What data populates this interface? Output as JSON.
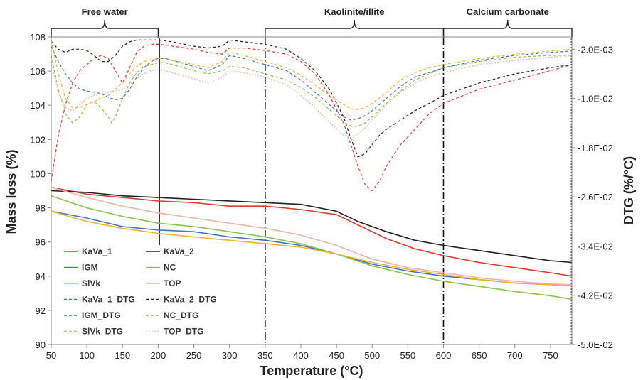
{
  "chart_data": {
    "type": "line",
    "title": "",
    "xlabel": "Temperature (°C)",
    "ylabel": "Mass loss (%)",
    "y2label": "DTG (%/°C)",
    "xlim": [
      50,
      780
    ],
    "ylim": [
      90,
      108
    ],
    "y2lim": [
      -0.05,
      0.0
    ],
    "xticks": [
      "50",
      "100",
      "150",
      "200",
      "250",
      "300",
      "350",
      "400",
      "450",
      "500",
      "550",
      "600",
      "650",
      "700",
      "750"
    ],
    "yticks": [
      "90",
      "92",
      "94",
      "96",
      "98",
      "100",
      "102",
      "104",
      "106",
      "108"
    ],
    "y2ticks": [
      "-2.0E-03",
      "-1.0E-02",
      "-1.8E-02",
      "-2.6E-02",
      "-3.4E-02",
      "-4.2E-02",
      "-5.0E-02"
    ],
    "grid": false,
    "regions": [
      {
        "label": "Free water",
        "start": 50,
        "end": 200
      },
      {
        "label": "Kaolinite/illite",
        "start": 350,
        "end": 600
      },
      {
        "label": "Calcium carbonate",
        "start": 600,
        "end": 780
      }
    ],
    "legend": [
      "KaVa_1",
      "KaVa_2",
      "IGM",
      "NC",
      "SlVk",
      "TOP",
      "KaVa_1_DTG",
      "KaVa_2_DTG",
      "IGM_DTG",
      "NC_DTG",
      "SlVk_DTG",
      "TOP_DTG"
    ],
    "legend_position": "bottom-left",
    "series": [
      {
        "name": "KaVa_1",
        "axis": "left",
        "color": "#e03a2e",
        "dash": "solid",
        "x": [
          50,
          100,
          150,
          200,
          250,
          300,
          350,
          400,
          450,
          480,
          520,
          560,
          600,
          650,
          700,
          750,
          780
        ],
        "y": [
          99.2,
          98.8,
          98.6,
          98.4,
          98.3,
          98.1,
          98.1,
          97.9,
          97.6,
          97.0,
          96.2,
          95.6,
          95.2,
          94.8,
          94.5,
          94.2,
          94.0
        ]
      },
      {
        "name": "KaVa_2",
        "axis": "left",
        "color": "#222222",
        "dash": "solid",
        "x": [
          50,
          100,
          150,
          200,
          250,
          300,
          350,
          400,
          450,
          480,
          520,
          560,
          600,
          650,
          700,
          750,
          780
        ],
        "y": [
          99.0,
          98.9,
          98.7,
          98.6,
          98.5,
          98.4,
          98.3,
          98.2,
          97.8,
          97.2,
          96.6,
          96.1,
          95.8,
          95.5,
          95.2,
          94.9,
          94.8
        ]
      },
      {
        "name": "IGM",
        "axis": "left",
        "color": "#4472c4",
        "dash": "solid",
        "x": [
          50,
          100,
          150,
          200,
          250,
          300,
          350,
          400,
          450,
          500,
          550,
          600,
          650,
          700,
          750,
          780
        ],
        "y": [
          97.8,
          97.4,
          96.9,
          96.7,
          96.6,
          96.3,
          96.1,
          95.8,
          95.3,
          94.7,
          94.3,
          94.0,
          93.8,
          93.6,
          93.5,
          93.45
        ]
      },
      {
        "name": "NC",
        "axis": "left",
        "color": "#8bc34a",
        "dash": "solid",
        "x": [
          50,
          100,
          150,
          200,
          250,
          300,
          350,
          400,
          450,
          500,
          550,
          600,
          650,
          700,
          750,
          780
        ],
        "y": [
          98.7,
          98.0,
          97.5,
          97.1,
          96.9,
          96.6,
          96.3,
          95.9,
          95.3,
          94.6,
          94.1,
          93.7,
          93.4,
          93.1,
          92.85,
          92.65
        ]
      },
      {
        "name": "SlVk",
        "axis": "left",
        "color": "#f0b429",
        "dash": "solid",
        "x": [
          50,
          100,
          150,
          200,
          250,
          300,
          350,
          400,
          450,
          500,
          550,
          600,
          650,
          700,
          750,
          780
        ],
        "y": [
          97.8,
          97.2,
          96.8,
          96.5,
          96.3,
          96.1,
          95.9,
          95.7,
          95.3,
          94.8,
          94.4,
          94.1,
          93.8,
          93.6,
          93.5,
          93.45
        ]
      },
      {
        "name": "TOP",
        "axis": "left",
        "color": "#f0b4a8",
        "dash": "solid",
        "x": [
          50,
          100,
          150,
          200,
          250,
          300,
          350,
          400,
          450,
          500,
          550,
          600,
          650,
          700,
          750,
          780
        ],
        "y": [
          99.2,
          98.6,
          98.1,
          97.7,
          97.4,
          97.1,
          96.8,
          96.4,
          95.8,
          95.0,
          94.5,
          94.2,
          93.9,
          93.7,
          93.55,
          93.5
        ]
      },
      {
        "name": "KaVa_1_DTG",
        "axis": "right",
        "color": "#e03a2e",
        "dash": "dash",
        "x": [
          50,
          60,
          70,
          80,
          90,
          100,
          110,
          120,
          130,
          140,
          150,
          160,
          170,
          180,
          190,
          200,
          210,
          220,
          250,
          270,
          290,
          300,
          320,
          350,
          380,
          400,
          420,
          440,
          460,
          470,
          480,
          490,
          500,
          510,
          520,
          540,
          560,
          580,
          600,
          650,
          700,
          750,
          780
        ],
        "y": [
          -0.0235,
          -0.016,
          -0.011,
          -0.0075,
          -0.0055,
          -0.0045,
          -0.0035,
          -0.003,
          -0.0035,
          -0.0055,
          -0.0075,
          -0.005,
          -0.0025,
          -0.0015,
          -0.0012,
          -0.0012,
          -0.0013,
          -0.0015,
          -0.002,
          -0.0025,
          -0.0028,
          -0.0018,
          -0.0018,
          -0.0022,
          -0.0028,
          -0.004,
          -0.006,
          -0.0095,
          -0.014,
          -0.0175,
          -0.021,
          -0.024,
          -0.025,
          -0.0235,
          -0.021,
          -0.0175,
          -0.015,
          -0.0125,
          -0.0108,
          -0.0085,
          -0.007,
          -0.0055,
          -0.0045
        ]
      },
      {
        "name": "KaVa_2_DTG",
        "axis": "right",
        "color": "#222222",
        "dash": "dash",
        "x": [
          50,
          60,
          70,
          80,
          90,
          100,
          110,
          120,
          130,
          140,
          150,
          160,
          170,
          180,
          190,
          200,
          220,
          250,
          270,
          290,
          300,
          320,
          350,
          380,
          400,
          420,
          440,
          460,
          470,
          480,
          490,
          500,
          510,
          520,
          540,
          560,
          580,
          600,
          650,
          700,
          750,
          780
        ],
        "y": [
          -0.0007,
          -0.002,
          -0.0025,
          -0.002,
          -0.002,
          -0.0022,
          -0.003,
          -0.004,
          -0.004,
          -0.003,
          -0.0015,
          -0.0008,
          -0.0005,
          -0.0005,
          -0.0005,
          -0.0005,
          -0.0008,
          -0.0015,
          -0.0018,
          -0.0015,
          -0.0005,
          -0.0008,
          -0.0012,
          -0.002,
          -0.0035,
          -0.0055,
          -0.0085,
          -0.013,
          -0.0165,
          -0.0195,
          -0.019,
          -0.0175,
          -0.016,
          -0.015,
          -0.0135,
          -0.012,
          -0.0108,
          -0.0095,
          -0.0075,
          -0.006,
          -0.005,
          -0.0045
        ]
      },
      {
        "name": "IGM_DTG",
        "axis": "right",
        "color": "#4472c4",
        "dash": "dash",
        "x": [
          50,
          60,
          70,
          80,
          90,
          100,
          110,
          120,
          130,
          140,
          150,
          160,
          170,
          180,
          190,
          200,
          210,
          220,
          250,
          270,
          290,
          300,
          320,
          350,
          380,
          400,
          420,
          440,
          460,
          470,
          480,
          490,
          500,
          520,
          540,
          560,
          580,
          600,
          650,
          700,
          750,
          780
        ],
        "y": [
          -0.0015,
          -0.004,
          -0.006,
          -0.0075,
          -0.0085,
          -0.0088,
          -0.009,
          -0.0092,
          -0.0098,
          -0.0102,
          -0.01,
          -0.0085,
          -0.0065,
          -0.005,
          -0.004,
          -0.0035,
          -0.0035,
          -0.0038,
          -0.0048,
          -0.0055,
          -0.0045,
          -0.003,
          -0.0035,
          -0.0045,
          -0.0055,
          -0.007,
          -0.009,
          -0.011,
          -0.013,
          -0.0135,
          -0.0133,
          -0.0128,
          -0.012,
          -0.01,
          -0.008,
          -0.0065,
          -0.0058,
          -0.005,
          -0.0038,
          -0.003,
          -0.0025,
          -0.0023
        ]
      },
      {
        "name": "NC_DTG",
        "axis": "right",
        "color": "#8bc34a",
        "dash": "dash",
        "x": [
          50,
          60,
          70,
          80,
          90,
          100,
          110,
          120,
          130,
          135,
          140,
          150,
          160,
          170,
          180,
          190,
          200,
          210,
          220,
          250,
          270,
          290,
          300,
          320,
          350,
          380,
          400,
          420,
          440,
          460,
          470,
          480,
          490,
          500,
          520,
          540,
          560,
          580,
          600,
          650,
          700,
          750,
          780
        ],
        "y": [
          -0.003,
          -0.0085,
          -0.0125,
          -0.014,
          -0.013,
          -0.011,
          -0.0105,
          -0.0115,
          -0.013,
          -0.014,
          -0.013,
          -0.01,
          -0.0075,
          -0.0058,
          -0.0048,
          -0.0045,
          -0.0042,
          -0.0042,
          -0.0045,
          -0.0055,
          -0.006,
          -0.0055,
          -0.0048,
          -0.005,
          -0.006,
          -0.007,
          -0.0082,
          -0.0098,
          -0.0118,
          -0.0138,
          -0.0145,
          -0.0145,
          -0.014,
          -0.013,
          -0.0108,
          -0.0088,
          -0.007,
          -0.006,
          -0.005,
          -0.004,
          -0.0033,
          -0.003,
          -0.003
        ]
      },
      {
        "name": "SlVk_DTG",
        "axis": "right",
        "color": "#f0b429",
        "dash": "dash",
        "x": [
          50,
          60,
          70,
          80,
          90,
          100,
          110,
          120,
          130,
          140,
          150,
          160,
          170,
          180,
          190,
          200,
          210,
          220,
          250,
          270,
          290,
          300,
          320,
          350,
          380,
          400,
          420,
          440,
          460,
          470,
          480,
          490,
          500,
          520,
          540,
          560,
          580,
          600,
          650,
          700,
          750,
          780
        ],
        "y": [
          -0.0005,
          -0.006,
          -0.01,
          -0.0115,
          -0.0115,
          -0.011,
          -0.0105,
          -0.01,
          -0.0095,
          -0.0085,
          -0.0075,
          -0.006,
          -0.0048,
          -0.004,
          -0.0037,
          -0.0035,
          -0.0035,
          -0.0038,
          -0.0045,
          -0.005,
          -0.004,
          -0.0025,
          -0.003,
          -0.004,
          -0.005,
          -0.0062,
          -0.0078,
          -0.0095,
          -0.011,
          -0.0117,
          -0.0118,
          -0.0115,
          -0.0108,
          -0.009,
          -0.007,
          -0.0058,
          -0.005,
          -0.0045,
          -0.0035,
          -0.0028,
          -0.0023,
          -0.002
        ]
      },
      {
        "name": "TOP_DTG",
        "axis": "right",
        "color": "#f0b4a8",
        "dash": "dot",
        "x": [
          50,
          60,
          70,
          80,
          90,
          100,
          110,
          120,
          130,
          140,
          150,
          160,
          170,
          180,
          190,
          200,
          210,
          220,
          250,
          270,
          290,
          300,
          320,
          350,
          380,
          400,
          420,
          440,
          460,
          470,
          480,
          490,
          500,
          520,
          540,
          560,
          580,
          600,
          650,
          700,
          750,
          780
        ],
        "y": [
          -0.004,
          -0.009,
          -0.0115,
          -0.012,
          -0.011,
          -0.01,
          -0.0095,
          -0.0093,
          -0.009,
          -0.0088,
          -0.0085,
          -0.0078,
          -0.0068,
          -0.006,
          -0.0055,
          -0.0053,
          -0.0055,
          -0.0058,
          -0.0068,
          -0.0075,
          -0.0065,
          -0.0055,
          -0.0058,
          -0.0065,
          -0.0078,
          -0.0095,
          -0.0115,
          -0.0138,
          -0.016,
          -0.0163,
          -0.0158,
          -0.0148,
          -0.0135,
          -0.011,
          -0.009,
          -0.0075,
          -0.0065,
          -0.0058,
          -0.0045,
          -0.0038,
          -0.0033,
          -0.003
        ]
      }
    ]
  }
}
